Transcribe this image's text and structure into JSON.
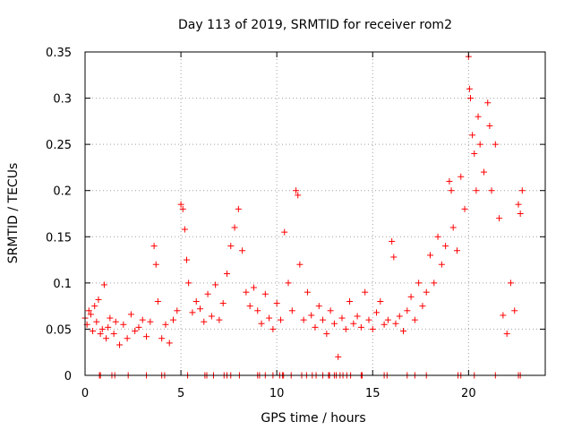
{
  "chart_data": {
    "type": "scatter",
    "title": "Day 113 of 2019, SRMTID for receiver rom2",
    "xlabel": "GPS time / hours",
    "ylabel": "SRMTID / TECUs",
    "xlim": [
      0,
      24
    ],
    "ylim": [
      0,
      0.35
    ],
    "xticks": [
      0,
      5,
      10,
      15,
      20
    ],
    "xtick_labels": [
      "0",
      "5",
      "10",
      "15",
      "20"
    ],
    "yticks": [
      0,
      0.05,
      0.1,
      0.15,
      0.2,
      0.25,
      0.3,
      0.35
    ],
    "ytick_labels": [
      "0",
      "0.05",
      "0.1",
      "0.15",
      "0.2",
      "0.25",
      "0.3",
      "0.35"
    ],
    "grid": true,
    "marker": "+",
    "color": "#ff0000",
    "series": [
      {
        "name": "SRMTID",
        "points": [
          [
            0.0,
            0.062
          ],
          [
            0.1,
            0.055
          ],
          [
            0.2,
            0.07
          ],
          [
            0.3,
            0.066
          ],
          [
            0.4,
            0.048
          ],
          [
            0.5,
            0.075
          ],
          [
            0.6,
            0.058
          ],
          [
            0.7,
            0.082
          ],
          [
            0.8,
            0.045
          ],
          [
            0.9,
            0.05
          ],
          [
            1.0,
            0.098
          ],
          [
            1.1,
            0.04
          ],
          [
            1.2,
            0.052
          ],
          [
            1.3,
            0.062
          ],
          [
            1.5,
            0.045
          ],
          [
            1.6,
            0.058
          ],
          [
            1.8,
            0.033
          ],
          [
            2.0,
            0.055
          ],
          [
            2.2,
            0.04
          ],
          [
            2.4,
            0.066
          ],
          [
            2.6,
            0.048
          ],
          [
            2.8,
            0.052
          ],
          [
            3.0,
            0.06
          ],
          [
            3.2,
            0.042
          ],
          [
            3.4,
            0.058
          ],
          [
            3.6,
            0.14
          ],
          [
            3.7,
            0.12
          ],
          [
            3.8,
            0.08
          ],
          [
            4.0,
            0.04
          ],
          [
            4.2,
            0.055
          ],
          [
            4.4,
            0.035
          ],
          [
            4.6,
            0.06
          ],
          [
            4.8,
            0.07
          ],
          [
            5.0,
            0.185
          ],
          [
            5.1,
            0.18
          ],
          [
            5.2,
            0.158
          ],
          [
            5.3,
            0.125
          ],
          [
            5.4,
            0.1
          ],
          [
            5.6,
            0.068
          ],
          [
            5.8,
            0.08
          ],
          [
            6.0,
            0.072
          ],
          [
            6.2,
            0.058
          ],
          [
            6.4,
            0.088
          ],
          [
            6.6,
            0.064
          ],
          [
            6.8,
            0.098
          ],
          [
            7.0,
            0.06
          ],
          [
            7.2,
            0.078
          ],
          [
            7.4,
            0.11
          ],
          [
            7.6,
            0.14
          ],
          [
            7.8,
            0.16
          ],
          [
            8.0,
            0.18
          ],
          [
            8.2,
            0.135
          ],
          [
            8.4,
            0.09
          ],
          [
            8.6,
            0.075
          ],
          [
            8.8,
            0.095
          ],
          [
            9.0,
            0.07
          ],
          [
            9.2,
            0.056
          ],
          [
            9.4,
            0.088
          ],
          [
            9.6,
            0.062
          ],
          [
            9.8,
            0.05
          ],
          [
            10.0,
            0.078
          ],
          [
            10.2,
            0.06
          ],
          [
            10.4,
            0.155
          ],
          [
            10.6,
            0.1
          ],
          [
            10.8,
            0.07
          ],
          [
            11.0,
            0.2
          ],
          [
            11.1,
            0.195
          ],
          [
            11.2,
            0.12
          ],
          [
            11.4,
            0.06
          ],
          [
            11.6,
            0.09
          ],
          [
            11.8,
            0.065
          ],
          [
            12.0,
            0.052
          ],
          [
            12.2,
            0.075
          ],
          [
            12.4,
            0.06
          ],
          [
            12.6,
            0.045
          ],
          [
            12.8,
            0.07
          ],
          [
            13.0,
            0.056
          ],
          [
            13.2,
            0.02
          ],
          [
            13.4,
            0.062
          ],
          [
            13.6,
            0.05
          ],
          [
            13.8,
            0.08
          ],
          [
            14.0,
            0.056
          ],
          [
            14.2,
            0.064
          ],
          [
            14.4,
            0.052
          ],
          [
            14.6,
            0.09
          ],
          [
            14.8,
            0.06
          ],
          [
            15.0,
            0.05
          ],
          [
            15.2,
            0.068
          ],
          [
            15.4,
            0.08
          ],
          [
            15.6,
            0.055
          ],
          [
            15.8,
            0.06
          ],
          [
            16.0,
            0.145
          ],
          [
            16.1,
            0.128
          ],
          [
            16.2,
            0.056
          ],
          [
            16.4,
            0.064
          ],
          [
            16.6,
            0.048
          ],
          [
            16.8,
            0.07
          ],
          [
            17.0,
            0.085
          ],
          [
            17.2,
            0.06
          ],
          [
            17.4,
            0.1
          ],
          [
            17.6,
            0.075
          ],
          [
            17.8,
            0.09
          ],
          [
            18.0,
            0.13
          ],
          [
            18.2,
            0.1
          ],
          [
            18.4,
            0.15
          ],
          [
            18.6,
            0.12
          ],
          [
            18.8,
            0.14
          ],
          [
            19.0,
            0.21
          ],
          [
            19.1,
            0.2
          ],
          [
            19.2,
            0.16
          ],
          [
            19.4,
            0.135
          ],
          [
            19.6,
            0.215
          ],
          [
            19.8,
            0.18
          ],
          [
            20.0,
            0.345
          ],
          [
            20.05,
            0.31
          ],
          [
            20.1,
            0.3
          ],
          [
            20.2,
            0.26
          ],
          [
            20.3,
            0.24
          ],
          [
            20.4,
            0.2
          ],
          [
            20.5,
            0.28
          ],
          [
            20.6,
            0.25
          ],
          [
            20.8,
            0.22
          ],
          [
            21.0,
            0.295
          ],
          [
            21.1,
            0.27
          ],
          [
            21.2,
            0.2
          ],
          [
            21.4,
            0.25
          ],
          [
            21.6,
            0.17
          ],
          [
            21.8,
            0.065
          ],
          [
            22.0,
            0.045
          ],
          [
            22.2,
            0.1
          ],
          [
            22.4,
            0.07
          ],
          [
            22.6,
            0.185
          ],
          [
            22.7,
            0.175
          ],
          [
            22.8,
            0.2
          ]
        ]
      }
    ],
    "zero_marks_x": [
      0.75,
      0.8,
      1.4,
      1.55,
      2.25,
      3.2,
      4.0,
      4.15,
      5.35,
      6.25,
      6.35,
      6.7,
      7.25,
      7.4,
      7.6,
      8.05,
      9.0,
      9.1,
      9.4,
      9.8,
      10.15,
      10.3,
      10.35,
      10.75,
      11.3,
      11.55,
      11.85,
      12.05,
      12.4,
      12.7,
      12.75,
      13.0,
      13.1,
      13.3,
      13.45,
      13.65,
      13.85,
      14.4,
      14.45,
      15.6,
      15.75,
      16.8,
      17.2,
      17.8,
      19.45,
      19.6,
      20.3,
      21.4,
      22.6,
      22.7
    ]
  }
}
